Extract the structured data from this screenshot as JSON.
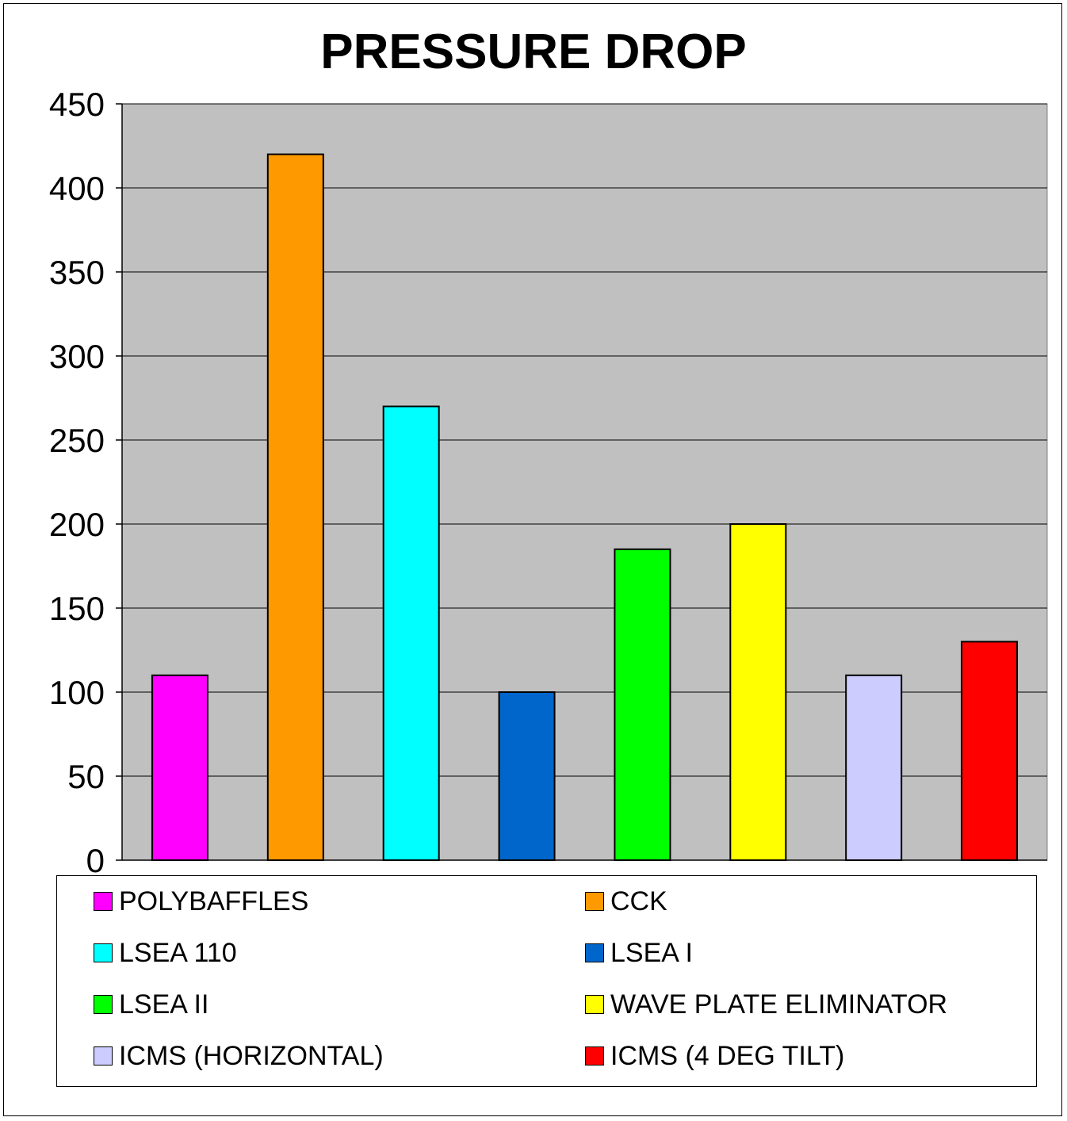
{
  "chart_data": {
    "type": "bar",
    "title": "PRESSURE DROP",
    "xlabel": "",
    "ylabel": "",
    "ylim": [
      0,
      450
    ],
    "yticks": [
      0,
      50,
      100,
      150,
      200,
      250,
      300,
      350,
      400,
      450
    ],
    "grid": true,
    "legend_position": "bottom",
    "plot_background": "#C0C0C0",
    "series": [
      {
        "name": "POLYBAFFLES",
        "value": 110,
        "color": "#FF00FF"
      },
      {
        "name": "CCK",
        "value": 420,
        "color": "#FF9900"
      },
      {
        "name": "LSEA 110",
        "value": 270,
        "color": "#00FFFF"
      },
      {
        "name": "LSEA I",
        "value": 100,
        "color": "#0066CC"
      },
      {
        "name": "LSEA II",
        "value": 185,
        "color": "#00FF00"
      },
      {
        "name": "WAVE PLATE ELIMINATOR",
        "value": 200,
        "color": "#FFFF00"
      },
      {
        "name": "ICMS (HORIZONTAL)",
        "value": 110,
        "color": "#CCCCFF"
      },
      {
        "name": "ICMS (4 DEG TILT)",
        "value": 130,
        "color": "#FF0000"
      }
    ]
  }
}
